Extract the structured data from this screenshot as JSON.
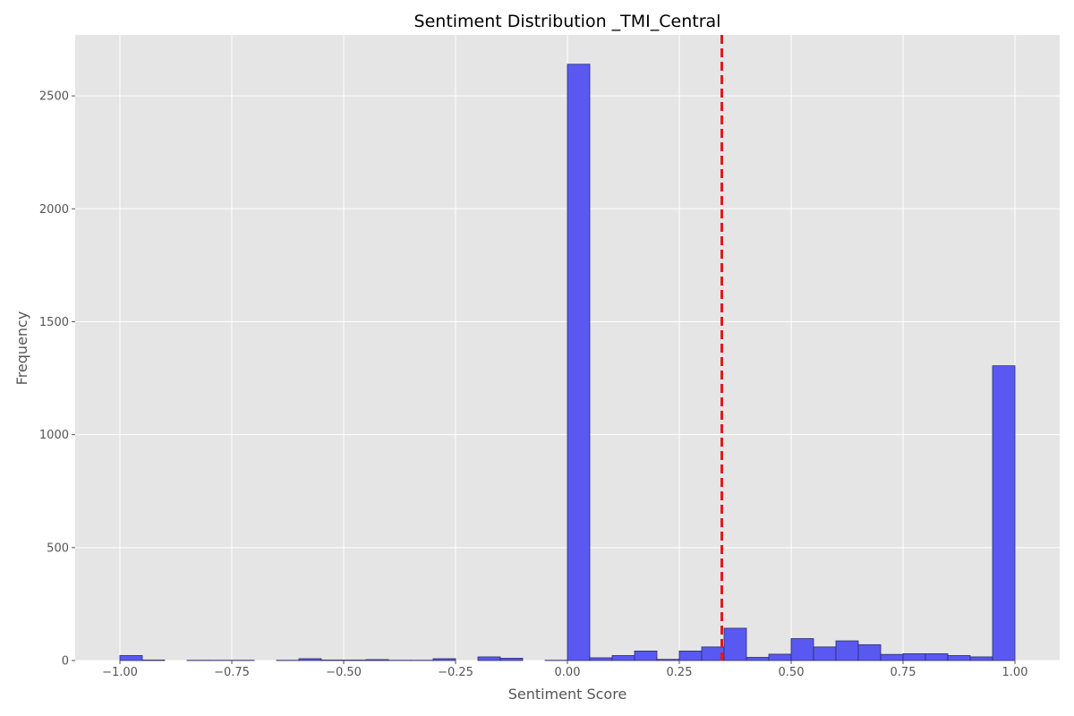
{
  "chart_data": {
    "type": "bar",
    "title": "Sentiment Distribution _TMI_Central",
    "xlabel": "Sentiment Score",
    "ylabel": "Frequency",
    "xlim": [
      -1.1,
      1.1
    ],
    "ylim": [
      0,
      2770
    ],
    "xticks": [
      -1.0,
      -0.75,
      -0.5,
      -0.25,
      0.0,
      0.25,
      0.5,
      0.75,
      1.0
    ],
    "xtick_labels": [
      "−1.00",
      "−0.75",
      "−0.50",
      "−0.25",
      "0.00",
      "0.25",
      "0.50",
      "0.75",
      "1.00"
    ],
    "yticks": [
      0,
      500,
      1000,
      1500,
      2000,
      2500
    ],
    "ytick_labels": [
      "0",
      "500",
      "1000",
      "1500",
      "2000",
      "2500"
    ],
    "bin_width": 0.05,
    "bin_starts": [
      -1.0,
      -0.95,
      -0.9,
      -0.85,
      -0.8,
      -0.75,
      -0.7,
      -0.65,
      -0.6,
      -0.55,
      -0.5,
      -0.45,
      -0.4,
      -0.35,
      -0.3,
      -0.25,
      -0.2,
      -0.15,
      -0.1,
      -0.05,
      0.0,
      0.05,
      0.1,
      0.15,
      0.2,
      0.25,
      0.3,
      0.35,
      0.4,
      0.45,
      0.5,
      0.55,
      0.6,
      0.65,
      0.7,
      0.75,
      0.8,
      0.85,
      0.9,
      0.95
    ],
    "values": [
      22,
      2,
      0,
      1,
      1,
      1,
      0,
      1,
      8,
      2,
      2,
      4,
      1,
      1,
      8,
      0,
      16,
      10,
      0,
      1,
      2640,
      12,
      22,
      42,
      5,
      42,
      60,
      143,
      14,
      28,
      97,
      60,
      87,
      70,
      27,
      30,
      30,
      22,
      16,
      1305
    ],
    "mean_line": 0.345,
    "grid": true,
    "colors": {
      "bar_fill": "#5959f2",
      "bar_edge": "#2a2a70",
      "mean_line": "#e31a1c",
      "plot_bg": "#e5e5e5",
      "grid": "#ffffff"
    }
  }
}
